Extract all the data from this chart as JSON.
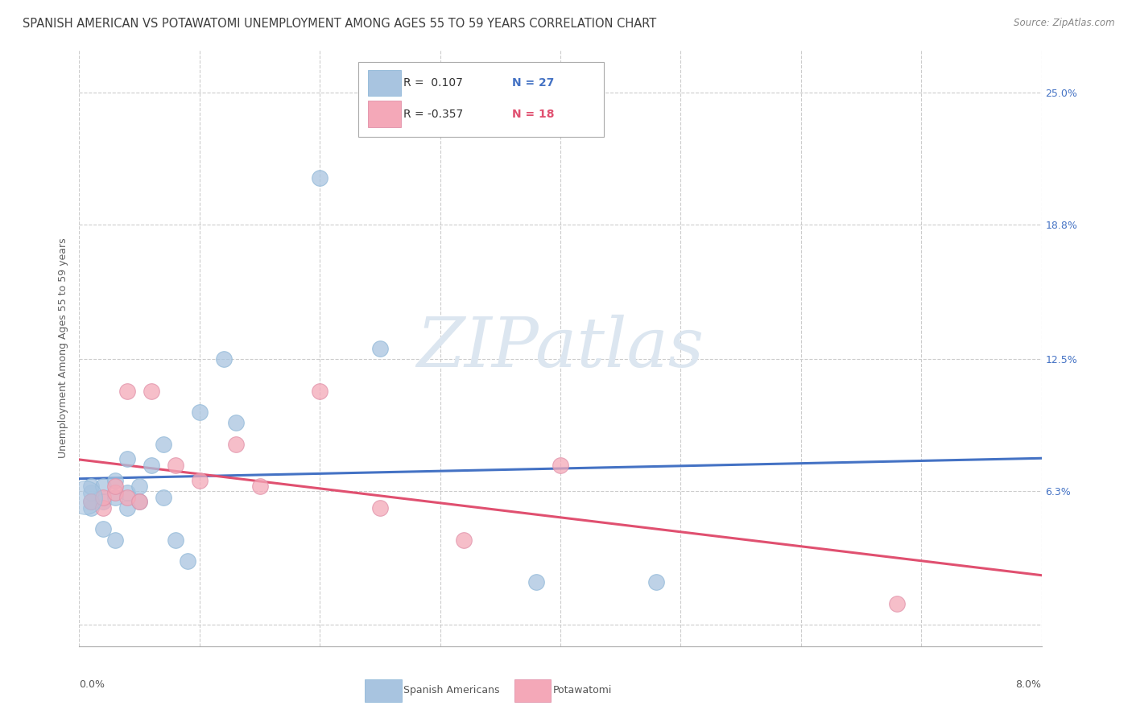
{
  "title": "SPANISH AMERICAN VS POTAWATOMI UNEMPLOYMENT AMONG AGES 55 TO 59 YEARS CORRELATION CHART",
  "source": "Source: ZipAtlas.com",
  "ylabel": "Unemployment Among Ages 55 to 59 years",
  "ytick_vals": [
    0.0,
    0.063,
    0.125,
    0.188,
    0.25
  ],
  "ytick_labels": [
    "",
    "6.3%",
    "12.5%",
    "18.8%",
    "25.0%"
  ],
  "xlim": [
    0.0,
    0.08
  ],
  "ylim": [
    -0.01,
    0.27
  ],
  "legend_r1": "R =  0.107",
  "legend_n1": "N = 27",
  "legend_r2": "R = -0.357",
  "legend_n2": "N = 18",
  "blue_scatter_color": "#a8c4e0",
  "pink_scatter_color": "#f4a8b8",
  "blue_line_color": "#4472c4",
  "pink_line_color": "#e05070",
  "background_color": "#ffffff",
  "watermark_color": "#dce6f0",
  "grid_color": "#cccccc",
  "title_color": "#404040",
  "ylabel_color": "#606060",
  "yticklabel_color": "#4472c4",
  "source_color": "#888888",
  "spanish_x": [
    0.001,
    0.001,
    0.001,
    0.001,
    0.002,
    0.002,
    0.002,
    0.003,
    0.003,
    0.003,
    0.004,
    0.004,
    0.004,
    0.005,
    0.005,
    0.006,
    0.007,
    0.007,
    0.008,
    0.009,
    0.01,
    0.012,
    0.013,
    0.02,
    0.025,
    0.038,
    0.048
  ],
  "spanish_y": [
    0.055,
    0.058,
    0.062,
    0.065,
    0.045,
    0.058,
    0.065,
    0.04,
    0.06,
    0.068,
    0.055,
    0.062,
    0.078,
    0.058,
    0.065,
    0.075,
    0.06,
    0.085,
    0.04,
    0.03,
    0.1,
    0.125,
    0.095,
    0.21,
    0.13,
    0.02,
    0.02
  ],
  "potawatomi_x": [
    0.001,
    0.002,
    0.002,
    0.003,
    0.003,
    0.004,
    0.004,
    0.005,
    0.006,
    0.008,
    0.01,
    0.013,
    0.015,
    0.02,
    0.025,
    0.032,
    0.04,
    0.068
  ],
  "potawatomi_y": [
    0.058,
    0.055,
    0.06,
    0.062,
    0.065,
    0.06,
    0.11,
    0.058,
    0.11,
    0.075,
    0.068,
    0.085,
    0.065,
    0.11,
    0.055,
    0.04,
    0.075,
    0.01
  ],
  "title_fontsize": 10.5,
  "axis_fontsize": 9,
  "legend_fontsize": 10,
  "source_fontsize": 8.5
}
